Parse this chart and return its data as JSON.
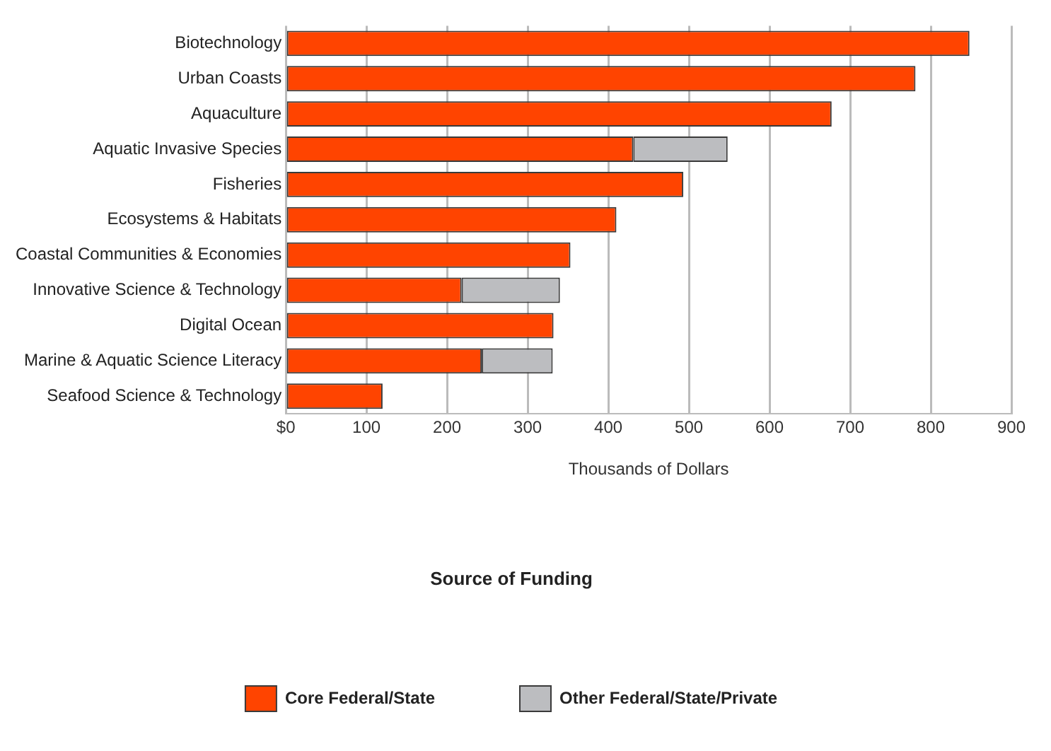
{
  "chart_data": {
    "type": "bar",
    "orientation": "horizontal",
    "stacked": true,
    "categories": [
      "Biotechnology",
      "Urban Coasts",
      "Aquaculture",
      "Aquatic Invasive Species",
      "Fisheries",
      "Ecosystems & Habitats",
      "Coastal Communities & Economies",
      "Innovative Science & Technology",
      "Digital Ocean",
      "Marine & Aquatic Science Literacy",
      "Seafood Science & Technology"
    ],
    "series": [
      {
        "name": "Core Federal/State",
        "color": "#ff4400",
        "values": [
          848,
          781,
          677,
          431,
          493,
          410,
          353,
          218,
          332,
          243,
          120
        ]
      },
      {
        "name": "Other Federal/State/Private",
        "color": "#bcbdc0",
        "values": [
          null,
          null,
          null,
          117,
          null,
          null,
          null,
          122,
          null,
          88,
          null
        ]
      }
    ],
    "xlabel": "Thousands of Dollars",
    "legend_title": "Source of Funding",
    "legend": "bottom",
    "grid": "x",
    "xlim": [
      0,
      900
    ],
    "xticks": [
      {
        "value": 0,
        "label": "$0"
      },
      100,
      200,
      300,
      400,
      500,
      600,
      700,
      800,
      900
    ]
  }
}
